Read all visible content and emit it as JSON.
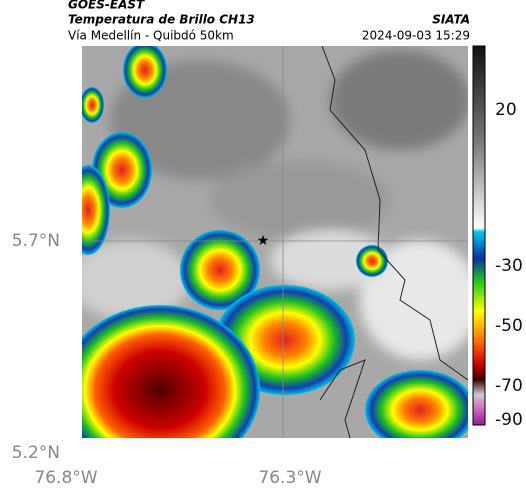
{
  "header": {
    "product": "GOES-EAST",
    "title": "Temperatura de Brillo CH13",
    "subtitle": "Vía Medellín - Quibdó 50km",
    "source": "SIATA",
    "timestamp": "2024-09-03 15:29"
  },
  "map": {
    "lat_labels": [
      "5.7°N",
      "5.2°N"
    ],
    "lon_labels": [
      "76.8°W",
      "76.3°W"
    ]
  },
  "colorbar": {
    "ticks": [
      20,
      -30,
      -50,
      -70,
      -90
    ]
  }
}
